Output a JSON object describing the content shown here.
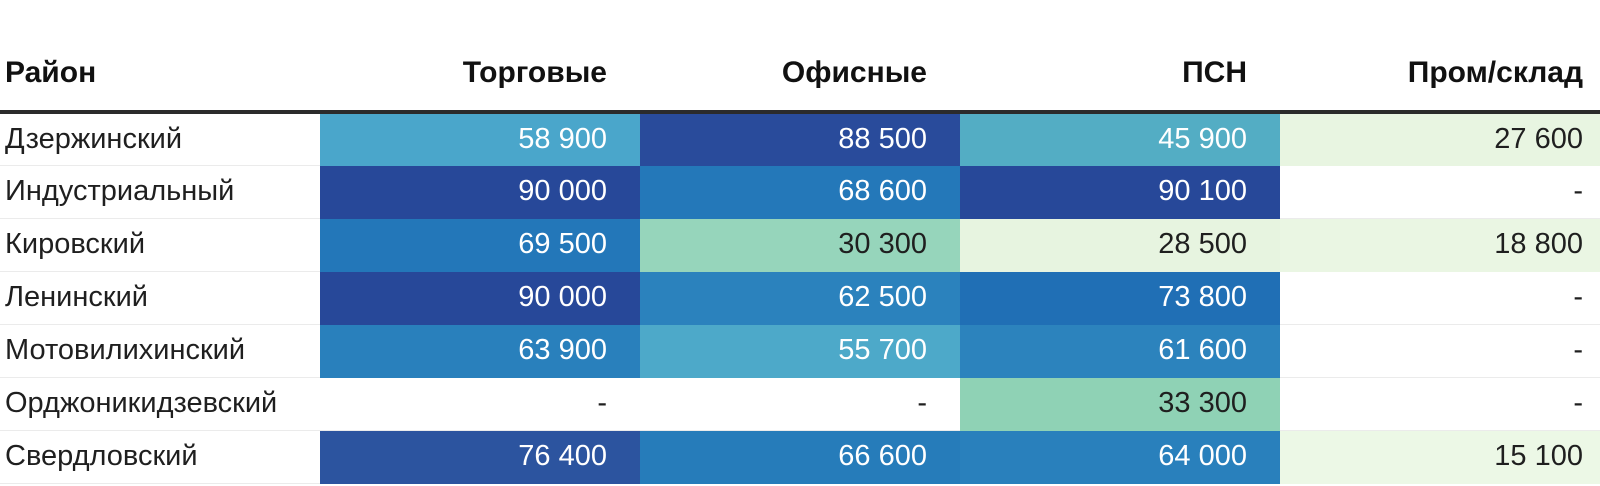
{
  "header": {
    "columns": [
      "Район",
      "Торговые",
      "Офисные",
      "ПСН",
      "Пром/склад"
    ]
  },
  "palette": {
    "low_pale_green": "#E9F6E3",
    "mid_green": "#93D4B9",
    "teal_blue": "#4DA7C9",
    "medium_blue": "#2177B9",
    "dark_navy": "#274899",
    "header_border": "#2b2b2b",
    "row_separator": "#ebebeb",
    "text_dark": "#1f1f1f",
    "text_light": "#FFFFFF"
  },
  "table": {
    "rows": [
      {
        "district": "Дзержинский",
        "cells": [
          {
            "value": "58 900",
            "bg": "#4AA6CB",
            "fg": "#FFFFFF"
          },
          {
            "value": "88 500",
            "bg": "#294B9B",
            "fg": "#FFFFFF"
          },
          {
            "value": "45 900",
            "bg": "#53ADC4",
            "fg": "#FFFFFF"
          },
          {
            "value": "27 600",
            "bg": "#E8F5E1",
            "fg": "#1F1F1F"
          }
        ]
      },
      {
        "district": "Индустриальный",
        "cells": [
          {
            "value": "90 000",
            "bg": "#274899",
            "fg": "#FFFFFF"
          },
          {
            "value": "68 600",
            "bg": "#2478B9",
            "fg": "#FFFFFF"
          },
          {
            "value": "90 100",
            "bg": "#274899",
            "fg": "#FFFFFF"
          },
          {
            "value": "-",
            "bg": null,
            "fg": "#1F1F1F"
          }
        ]
      },
      {
        "district": "Кировский",
        "cells": [
          {
            "value": "69 500",
            "bg": "#2377B9",
            "fg": "#FFFFFF"
          },
          {
            "value": "30 300",
            "bg": "#96D5BB",
            "fg": "#1F1F1F"
          },
          {
            "value": "28 500",
            "bg": "#E7F4E0",
            "fg": "#1F1F1F"
          },
          {
            "value": "18 800",
            "bg": "#EAF6E3",
            "fg": "#1F1F1F"
          }
        ]
      },
      {
        "district": "Ленинский",
        "cells": [
          {
            "value": "90 000",
            "bg": "#274899",
            "fg": "#FFFFFF"
          },
          {
            "value": "62 500",
            "bg": "#2B82BD",
            "fg": "#FFFFFF"
          },
          {
            "value": "73 800",
            "bg": "#206FB5",
            "fg": "#FFFFFF"
          },
          {
            "value": "-",
            "bg": null,
            "fg": "#1F1F1F"
          }
        ]
      },
      {
        "district": "Мотовилихинский",
        "cells": [
          {
            "value": "63 900",
            "bg": "#2980BC",
            "fg": "#FFFFFF"
          },
          {
            "value": "55 700",
            "bg": "#4DA9C9",
            "fg": "#FFFFFF"
          },
          {
            "value": "61 600",
            "bg": "#2C83BD",
            "fg": "#FFFFFF"
          },
          {
            "value": "-",
            "bg": null,
            "fg": "#1F1F1F"
          }
        ]
      },
      {
        "district": "Орджоникидзевский",
        "cells": [
          {
            "value": "-",
            "bg": null,
            "fg": "#1F1F1F"
          },
          {
            "value": "-",
            "bg": null,
            "fg": "#1F1F1F"
          },
          {
            "value": "33 300",
            "bg": "#8FD2B5",
            "fg": "#1F1F1F"
          },
          {
            "value": "-",
            "bg": null,
            "fg": "#1F1F1F"
          }
        ]
      },
      {
        "district": "Свердловский",
        "cells": [
          {
            "value": "76 400",
            "bg": "#2C549F",
            "fg": "#FFFFFF"
          },
          {
            "value": "66 600",
            "bg": "#267CBA",
            "fg": "#FFFFFF"
          },
          {
            "value": "64 000",
            "bg": "#2980BC",
            "fg": "#FFFFFF"
          },
          {
            "value": "15 100",
            "bg": "#ECF8E6",
            "fg": "#1F1F1F"
          }
        ]
      }
    ]
  },
  "chart_data": {
    "type": "heatmap",
    "title": "",
    "rows": [
      "Дзержинский",
      "Индустриальный",
      "Кировский",
      "Ленинский",
      "Мотовилихинский",
      "Орджоникидзевский",
      "Свердловский"
    ],
    "columns": [
      "Торговые",
      "Офисные",
      "ПСН",
      "Пром/склад"
    ],
    "values": [
      [
        58900,
        88500,
        45900,
        27600
      ],
      [
        90000,
        68600,
        90100,
        null
      ],
      [
        69500,
        30300,
        28500,
        18800
      ],
      [
        90000,
        62500,
        73800,
        null
      ],
      [
        63900,
        55700,
        61600,
        null
      ],
      [
        null,
        null,
        33300,
        null
      ],
      [
        76400,
        66600,
        64000,
        15100
      ]
    ],
    "missing_marker": "-",
    "color_scale": {
      "low": "#E9F6E3",
      "mid": "#93D4B9",
      "high": "#274899",
      "note": "pale green = low values, saturated blue/navy = high values"
    },
    "value_range": [
      15100,
      90100
    ],
    "legend": "none",
    "grid": "off"
  }
}
